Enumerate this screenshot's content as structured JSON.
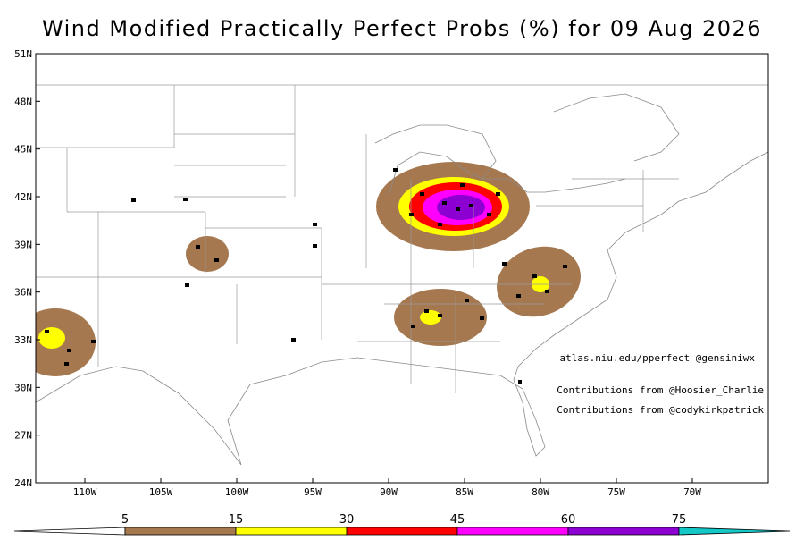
{
  "header": {
    "title": "Wind Modified Practically Perfect Probs (%) for 09 Aug 2026"
  },
  "map": {
    "lat_labels": [
      "51N",
      "48N",
      "45N",
      "42N",
      "39N",
      "36N",
      "33N",
      "30N",
      "27N",
      "24N"
    ],
    "lon_labels": [
      "110W",
      "105W",
      "100W",
      "95W",
      "90W",
      "85W",
      "80W",
      "75W",
      "70W"
    ],
    "credits": [
      "atlas.niu.edu/pperfect @gensiniwx",
      "Contributions from @Hoosier_Charlie",
      "Contributions from @codykirkpatrick"
    ]
  },
  "colorbar": {
    "ticks": [
      5,
      15,
      30,
      45,
      60,
      75
    ],
    "colors": [
      "#ffffff",
      "#a57850",
      "#ffff00",
      "#ff0000",
      "#ff00ff",
      "#8c00d2",
      "#14c8c8"
    ]
  }
}
